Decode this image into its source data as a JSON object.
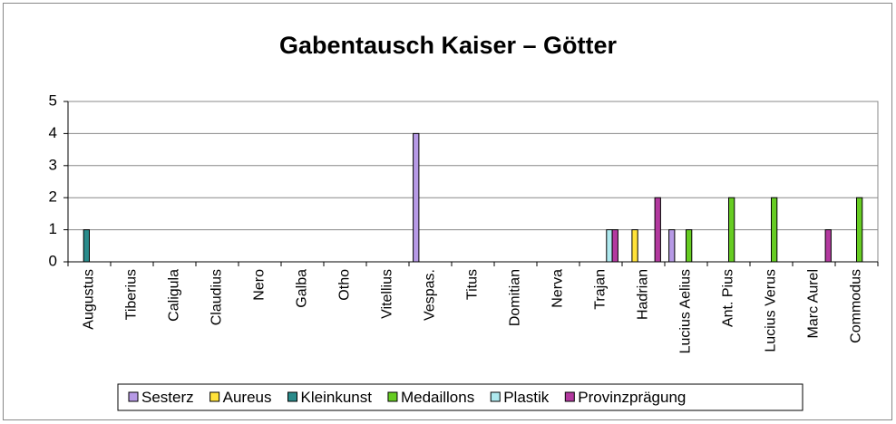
{
  "chart_data": {
    "type": "bar",
    "title": "Gabentausch Kaiser – Götter",
    "categories": [
      "Augustus",
      "Tiberius",
      "Caligula",
      "Claudius",
      "Nero",
      "Galba",
      "Otho",
      "Vitellius",
      "Vespas.",
      "Titus",
      "Domitian",
      "Nerva",
      "Trajan",
      "Hadrian",
      "Lucius Aelius",
      "Ant. Pius",
      "Lucius Verus",
      "Marc Aurel",
      "Commodus"
    ],
    "series": [
      {
        "name": "Sesterz",
        "color": "#b79ae6",
        "values": [
          0,
          0,
          0,
          0,
          0,
          0,
          0,
          0,
          4,
          0,
          0,
          0,
          0,
          0,
          1,
          0,
          0,
          0,
          0
        ]
      },
      {
        "name": "Aureus",
        "color": "#ffe23a",
        "values": [
          0,
          0,
          0,
          0,
          0,
          0,
          0,
          0,
          0,
          0,
          0,
          0,
          0,
          1,
          0,
          0,
          0,
          0,
          0
        ]
      },
      {
        "name": "Kleinkunst",
        "color": "#2a8b8b",
        "values": [
          1,
          0,
          0,
          0,
          0,
          0,
          0,
          0,
          0,
          0,
          0,
          0,
          0,
          0,
          0,
          0,
          0,
          0,
          0
        ]
      },
      {
        "name": "Medaillons",
        "color": "#66cc22",
        "values": [
          0,
          0,
          0,
          0,
          0,
          0,
          0,
          0,
          0,
          0,
          0,
          0,
          0,
          0,
          1,
          2,
          2,
          0,
          2
        ]
      },
      {
        "name": "Plastik",
        "color": "#aee9ef",
        "values": [
          0,
          0,
          0,
          0,
          0,
          0,
          0,
          0,
          0,
          0,
          0,
          0,
          1,
          0,
          0,
          0,
          0,
          0,
          0
        ]
      },
      {
        "name": "Provinzprägung",
        "color": "#b3399f",
        "values": [
          0,
          0,
          0,
          0,
          0,
          0,
          0,
          0,
          0,
          0,
          0,
          0,
          1,
          2,
          0,
          0,
          0,
          1,
          0
        ]
      }
    ],
    "ylim": [
      0,
      5
    ],
    "yticks": [
      0,
      1,
      2,
      3,
      4,
      5
    ],
    "grid": true,
    "legend": "bottom"
  }
}
